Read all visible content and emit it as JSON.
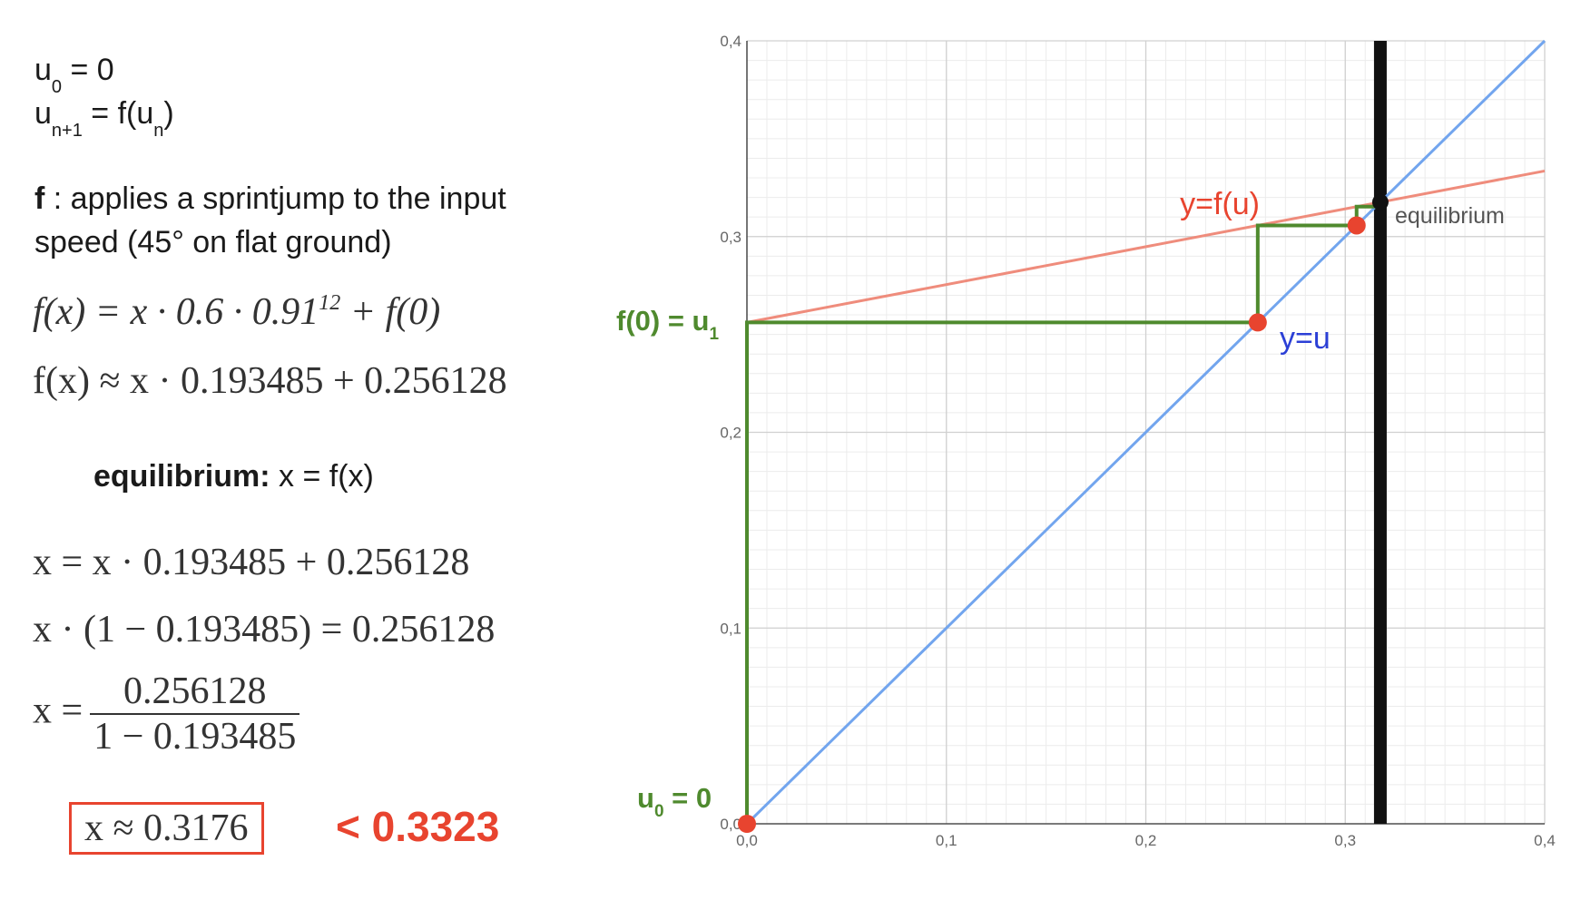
{
  "text": {
    "line1": [
      "u",
      "0",
      " = 0"
    ],
    "line2": [
      "u",
      "n+1",
      " = f(u",
      "n",
      ")"
    ],
    "line3": [
      "f",
      " : applies a sprintjump to the input"
    ],
    "line4": "speed (45° on flat ground)",
    "math1": [
      "f(x) = x · 0.6 · 0.91",
      "12",
      " + f(0)"
    ],
    "math2": "f(x) ≈ x · 0.193485 + 0.256128",
    "eq_title": [
      "equilibrium:",
      " x = f(x)"
    ],
    "math3": "x = x · 0.193485 + 0.256128",
    "math4": "x · (1 − 0.193485) = 0.256128",
    "math5": [
      "x =",
      "0.256128",
      "1 − 0.193485"
    ],
    "result": "x ≈ 0.3176",
    "compare": "< 0.3323"
  },
  "chart_data": {
    "type": "line",
    "xlim": [
      0,
      0.4
    ],
    "ylim": [
      0,
      0.4
    ],
    "xticks": [
      {
        "value": 0,
        "label": "0,0"
      },
      {
        "value": 0.1,
        "label": "0,1"
      },
      {
        "value": 0.2,
        "label": "0,2"
      },
      {
        "value": 0.3,
        "label": "0,3"
      },
      {
        "value": 0.4,
        "label": "0,4"
      }
    ],
    "yticks": [
      {
        "value": 0,
        "label": "0,0"
      },
      {
        "value": 0.1,
        "label": "0,1"
      },
      {
        "value": 0.2,
        "label": "0,2"
      },
      {
        "value": 0.3,
        "label": "0,3"
      },
      {
        "value": 0.4,
        "label": "0,4"
      }
    ],
    "grid": true,
    "minor_step": 0.01,
    "series": [
      {
        "name": "y=f(u)",
        "color": "#ef8c7c",
        "label_color": "#e8442f",
        "x": [
          0,
          0.4
        ],
        "values": [
          0.256128,
          0.333522
        ]
      },
      {
        "name": "y=u",
        "color": "#72a5ee",
        "label_color": "#2b3fd6",
        "x": [
          0,
          0.4
        ],
        "values": [
          0,
          0.4
        ]
      }
    ],
    "cobweb": {
      "color": "#4f8a2e",
      "x": [
        0,
        0,
        0.256128,
        0.256128,
        0.305685,
        0.305685,
        0.315274
      ],
      "values": [
        0,
        0.256128,
        0.256128,
        0.305685,
        0.305685,
        0.315274,
        0.315274
      ]
    },
    "points": {
      "color": "#e8442f",
      "x": [
        0,
        0.256128,
        0.305685
      ],
      "values": [
        0,
        0.256128,
        0.305685
      ]
    },
    "equilibrium": {
      "label": "equilibrium",
      "x": 0.3176,
      "color": "#111111"
    },
    "annotations": {
      "f0": [
        "f(0) = u",
        "1"
      ],
      "u0": [
        "u",
        "0",
        " = 0"
      ]
    }
  }
}
